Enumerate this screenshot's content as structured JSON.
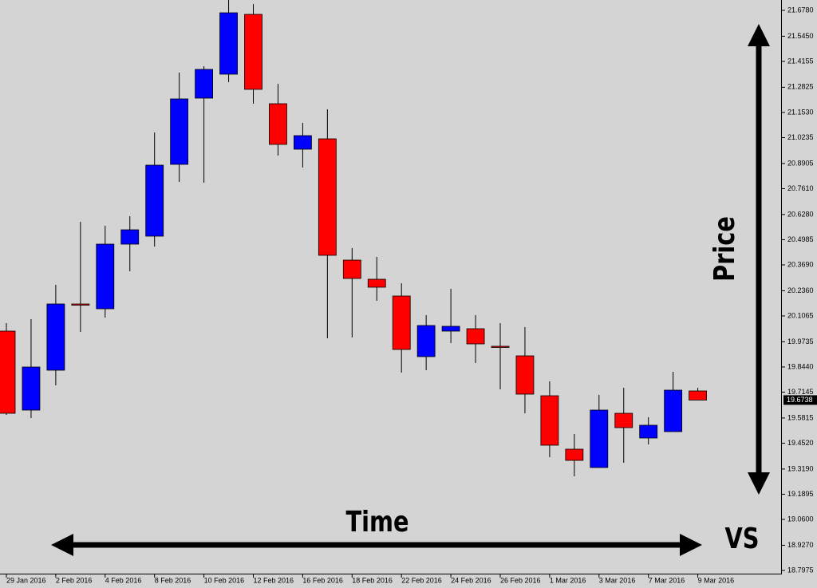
{
  "chart_data": {
    "type": "candlestick",
    "categories": [
      "29 Jan 2016",
      null,
      "2 Feb 2016",
      null,
      "4 Feb 2016",
      null,
      "8 Feb 2016",
      null,
      "10 Feb 2016",
      null,
      "12 Feb 2016",
      null,
      "16 Feb 2016",
      null,
      "18 Feb 2016",
      null,
      "22 Feb 2016",
      null,
      "24 Feb 2016",
      null,
      "26 Feb 2016",
      null,
      "1 Mar 2016",
      null,
      "3 Mar 2016",
      null,
      "7 Mar 2016",
      null,
      "9 Mar 2016"
    ],
    "open": [
      20.0284,
      19.6222,
      19.8273,
      20.1679,
      20.1433,
      20.4757,
      20.5167,
      20.886,
      21.2266,
      21.3497,
      21.6574,
      21.1979,
      20.964,
      21.0173,
      20.3936,
      20.2951,
      20.2089,
      19.8971,
      20.0284,
      20.0407,
      19.9504,
      19.9012,
      19.696,
      19.4211,
      19.3267,
      19.6057,
      19.4785,
      19.5114,
      19.7206
    ],
    "high": [
      20.0694,
      20.0899,
      20.2664,
      20.5906,
      20.57,
      20.6193,
      21.0501,
      21.3579,
      21.3907,
      21.7313,
      21.7108,
      21.3004,
      21.0994,
      21.1691,
      20.4551,
      20.41,
      20.2746,
      20.1105,
      20.2459,
      20.1105,
      20.0694,
      20.0489,
      19.7699,
      19.4991,
      19.7001,
      19.737,
      19.5852,
      19.8191,
      19.737
    ],
    "low": [
      19.5975,
      19.5811,
      19.7494,
      20.0243,
      20.0981,
      20.3361,
      20.4633,
      20.7957,
      20.7916,
      21.3086,
      21.1979,
      20.9311,
      20.8696,
      19.9915,
      19.9956,
      20.1843,
      19.815,
      19.8273,
      19.9668,
      19.8643,
      19.7288,
      19.6057,
      19.3801,
      19.2816,
      19.3267,
      19.3513,
      19.4457,
      19.5114,
      19.6738
    ],
    "close": [
      19.6057,
      19.8437,
      20.1679,
      20.1679,
      20.4757,
      20.5495,
      20.8819,
      21.2225,
      21.3743,
      21.6656,
      21.2717,
      20.9886,
      21.0337,
      20.4182,
      20.2992,
      20.2541,
      19.934,
      20.0571,
      20.053,
      19.9627,
      19.9504,
      19.7042,
      19.4416,
      19.3636,
      19.6222,
      19.5319,
      19.5442,
      19.7247,
      19.6738
    ],
    "up_color": "#0000ff",
    "down_color": "#ff0000",
    "ylim": [
      18.7769,
      21.7313
    ],
    "yticks": [
      {
        "value": 21.678,
        "label": "21.6780"
      },
      {
        "value": 21.545,
        "label": "21.5450"
      },
      21.4155,
      21.2825,
      {
        "value": 21.153,
        "label": "21.1530"
      },
      21.0235,
      20.8905,
      {
        "value": 20.761,
        "label": "20.7610"
      },
      {
        "value": 20.628,
        "label": "20.6280"
      },
      20.4985,
      {
        "value": 20.369,
        "label": "20.3690"
      },
      {
        "value": 20.236,
        "label": "20.2360"
      },
      20.1065,
      19.9735,
      {
        "value": 19.844,
        "label": "19.8440"
      },
      19.7145,
      19.5815,
      {
        "value": 19.452,
        "label": "19.4520"
      },
      {
        "value": 19.319,
        "label": "19.3190"
      },
      19.1895,
      {
        "value": 19.06,
        "label": "19.0600"
      },
      {
        "value": 18.927,
        "label": "18.9270"
      },
      18.7975
    ],
    "current_price": 19.6738,
    "annotations": {
      "time": "Time",
      "price": "Price",
      "vs": "VS"
    }
  }
}
